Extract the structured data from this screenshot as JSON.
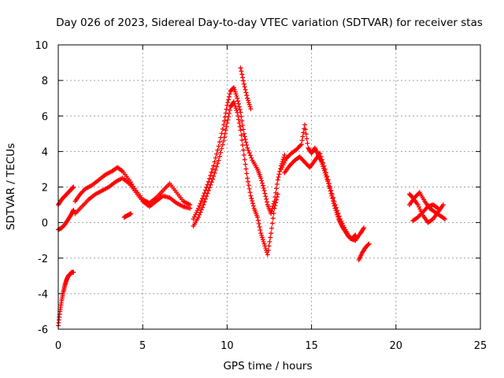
{
  "chart_data": {
    "type": "scatter",
    "title": "Day 026 of 2023, Sidereal Day-to-day VTEC variation (SDTVAR) for receiver stas",
    "xlabel": "GPS time / hours",
    "ylabel": "SDTVAR / TECUs",
    "xlim": [
      0,
      25
    ],
    "ylim": [
      -6,
      10
    ],
    "xticks": [
      0,
      5,
      10,
      15,
      20,
      25
    ],
    "yticks": [
      -6,
      -4,
      -2,
      0,
      2,
      4,
      6,
      8,
      10
    ],
    "xtick_labels": [
      "0",
      "5",
      "10",
      "15",
      "20",
      "25"
    ],
    "ytick_labels": [
      "-6",
      "-4",
      "-2",
      "0",
      "2",
      "4",
      "6",
      "8",
      "10"
    ],
    "grid": true,
    "marker": "+",
    "color": "#ff0000",
    "series": [
      {
        "name": "segment-1",
        "x": [
          0.0,
          0.1,
          0.2,
          0.3,
          0.4,
          0.5,
          0.6,
          0.7,
          0.8,
          0.9
        ],
        "y": [
          -5.8,
          -5.0,
          -4.4,
          -3.9,
          -3.5,
          -3.2,
          -3.0,
          -2.9,
          -2.8,
          -2.8
        ]
      },
      {
        "name": "segment-2",
        "x": [
          0.0,
          0.2,
          0.4,
          0.6,
          0.8,
          0.9
        ],
        "y": [
          -0.4,
          -0.3,
          -0.1,
          0.2,
          0.5,
          0.7
        ]
      },
      {
        "name": "segment-3",
        "x": [
          0.0,
          0.2,
          0.4,
          0.6,
          0.8,
          0.9
        ],
        "y": [
          1.0,
          1.3,
          1.5,
          1.7,
          1.9,
          2.0
        ]
      },
      {
        "name": "segment-4",
        "x": [
          1.0,
          1.3,
          1.6,
          2.0,
          2.4,
          2.8,
          3.2,
          3.5,
          3.8,
          4.2,
          4.6,
          5.0,
          5.4,
          5.8,
          6.2,
          6.6,
          7.0,
          7.4,
          7.8
        ],
        "y": [
          1.2,
          1.6,
          1.9,
          2.1,
          2.4,
          2.7,
          2.9,
          3.1,
          2.9,
          2.4,
          1.8,
          1.3,
          1.1,
          1.4,
          1.8,
          2.2,
          1.7,
          1.2,
          1.0
        ]
      },
      {
        "name": "segment-5",
        "x": [
          1.0,
          1.4,
          1.8,
          2.2,
          2.6,
          3.0,
          3.4,
          3.8,
          4.2,
          4.6,
          5.0,
          5.4,
          5.8,
          6.2,
          6.6,
          7.0,
          7.4,
          7.8
        ],
        "y": [
          0.5,
          0.9,
          1.3,
          1.6,
          1.8,
          2.0,
          2.3,
          2.5,
          2.2,
          1.7,
          1.2,
          0.9,
          1.2,
          1.5,
          1.4,
          1.1,
          0.9,
          0.8
        ]
      },
      {
        "name": "segment-6",
        "x": [
          3.9,
          4.1,
          4.3
        ],
        "y": [
          0.3,
          0.4,
          0.5
        ]
      },
      {
        "name": "segment-7",
        "x": [
          8.0,
          8.3,
          8.6,
          8.9,
          9.2,
          9.5,
          9.8,
          10.0,
          10.2,
          10.4,
          10.6,
          10.8,
          11.0,
          11.2,
          11.5,
          11.8,
          12.0,
          12.2,
          12.4,
          12.6,
          12.8,
          13.0,
          13.2,
          13.4
        ],
        "y": [
          0.2,
          0.8,
          1.5,
          2.3,
          3.2,
          4.3,
          5.5,
          6.6,
          7.4,
          7.6,
          7.0,
          6.2,
          5.0,
          4.2,
          3.5,
          3.0,
          2.5,
          1.8,
          1.0,
          0.5,
          1.2,
          2.4,
          3.2,
          3.8
        ]
      },
      {
        "name": "segment-8",
        "x": [
          8.0,
          8.3,
          8.6,
          8.9,
          9.2,
          9.5,
          9.8,
          10.0,
          10.2,
          10.4,
          10.6,
          10.8,
          11.0,
          11.2,
          11.4,
          11.6,
          11.8,
          12.0,
          12.2,
          12.4,
          12.6,
          12.8,
          13.0
        ],
        "y": [
          -0.2,
          0.3,
          1.0,
          1.8,
          2.6,
          3.5,
          4.6,
          5.6,
          6.5,
          6.8,
          6.2,
          5.2,
          3.8,
          2.5,
          1.5,
          0.8,
          0.3,
          -0.6,
          -1.2,
          -1.8,
          -0.6,
          0.8,
          1.6
        ]
      },
      {
        "name": "segment-9",
        "x": [
          10.8,
          11.0,
          11.2,
          11.4
        ],
        "y": [
          8.7,
          7.8,
          7.0,
          6.4
        ]
      },
      {
        "name": "segment-10",
        "x": [
          13.2,
          13.5,
          13.8,
          14.1,
          14.4,
          14.6,
          14.8,
          15.0,
          15.2,
          15.4,
          15.6,
          15.8,
          16.0,
          16.2,
          16.4,
          16.6,
          16.8,
          17.0,
          17.2,
          17.4,
          17.6
        ],
        "y": [
          3.0,
          3.6,
          3.9,
          4.1,
          4.4,
          5.5,
          4.2,
          3.9,
          4.2,
          3.8,
          3.4,
          2.8,
          2.2,
          1.5,
          0.8,
          0.2,
          -0.2,
          -0.5,
          -0.8,
          -0.9,
          -0.7
        ]
      },
      {
        "name": "segment-11",
        "x": [
          13.4,
          13.7,
          14.0,
          14.3,
          14.6,
          14.9,
          15.2,
          15.5,
          15.8,
          16.1,
          16.4,
          16.7,
          17.0,
          17.3,
          17.6,
          17.9,
          18.1
        ],
        "y": [
          2.8,
          3.2,
          3.5,
          3.7,
          3.4,
          3.1,
          3.5,
          3.9,
          3.0,
          2.0,
          1.0,
          0.2,
          -0.4,
          -0.9,
          -1.0,
          -0.6,
          -0.3
        ]
      },
      {
        "name": "segment-12",
        "x": [
          17.8,
          18.0,
          18.2,
          18.4
        ],
        "y": [
          -2.1,
          -1.7,
          -1.4,
          -1.2
        ]
      },
      {
        "name": "segment-13",
        "x": [
          20.8,
          21.0,
          21.3,
          21.6,
          21.9,
          22.2,
          22.5,
          22.8
        ],
        "y": [
          1.6,
          1.4,
          1.0,
          0.4,
          0.0,
          0.2,
          0.6,
          1.0
        ]
      },
      {
        "name": "segment-14",
        "x": [
          20.8,
          21.1,
          21.4,
          21.7,
          22.0,
          22.3,
          22.6,
          22.9
        ],
        "y": [
          1.0,
          1.4,
          1.7,
          1.2,
          0.8,
          0.6,
          0.4,
          0.2
        ]
      },
      {
        "name": "segment-15",
        "x": [
          21.0,
          21.3,
          21.6,
          21.9,
          22.2,
          22.5
        ],
        "y": [
          0.1,
          0.3,
          0.6,
          0.9,
          1.0,
          0.8
        ]
      }
    ]
  }
}
